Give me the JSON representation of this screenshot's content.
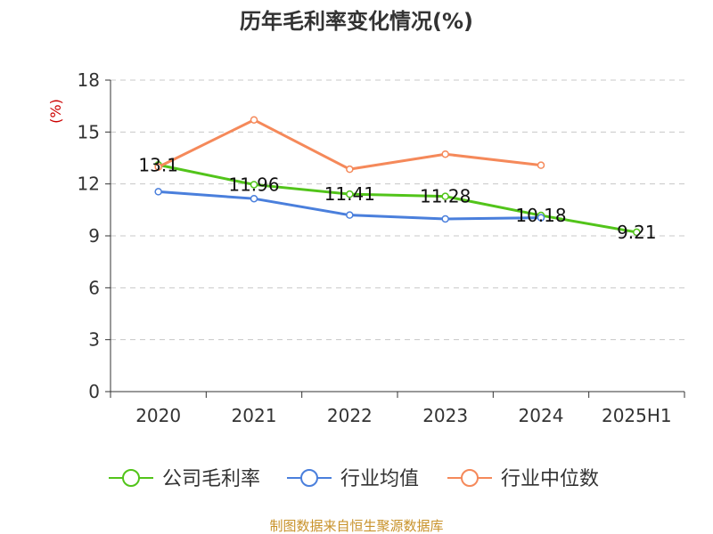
{
  "chart_data": {
    "type": "line",
    "title": "历年毛利率变化情况(%)",
    "ylabel": "(%)",
    "categories": [
      "2020",
      "2021",
      "2022",
      "2023",
      "2024",
      "2025H1"
    ],
    "ylim": [
      0,
      18
    ],
    "yticks": [
      0,
      3,
      6,
      9,
      12,
      15,
      18
    ],
    "grid": true,
    "legend_position": "bottom",
    "series": [
      {
        "name": "公司毛利率",
        "color": "#52c41a",
        "values": [
          13.1,
          11.96,
          11.41,
          11.28,
          10.18,
          9.21
        ],
        "show_labels": true
      },
      {
        "name": "行业均值",
        "color": "#4a7fdc",
        "values": [
          11.55,
          11.15,
          10.2,
          9.98,
          10.05,
          null
        ],
        "show_labels": false
      },
      {
        "name": "行业中位数",
        "color": "#f5895a",
        "values": [
          12.98,
          15.7,
          12.85,
          13.72,
          13.08,
          null
        ],
        "show_labels": false
      }
    ],
    "data_labels": [
      "13.1",
      "11.96",
      "11.41",
      "11.28",
      "10.18",
      "9.21"
    ]
  },
  "source_text": "制图数据来自恒生聚源数据库"
}
